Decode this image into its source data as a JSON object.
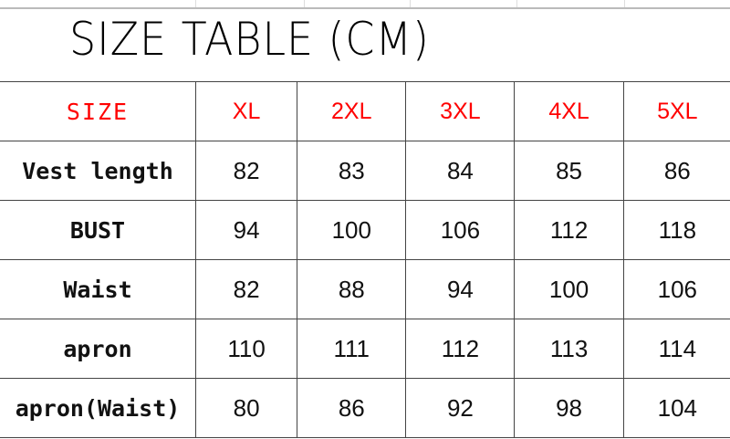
{
  "title": "SIZE TABLE (CM)",
  "header": {
    "label": "SIZE",
    "sizes": [
      "XL",
      "2XL",
      "3XL",
      "4XL",
      "5XL"
    ]
  },
  "rows": [
    {
      "label": "Vest length",
      "values": [
        "82",
        "83",
        "84",
        "85",
        "86"
      ]
    },
    {
      "label": "BUST",
      "values": [
        "94",
        "100",
        "106",
        "112",
        "118"
      ]
    },
    {
      "label": "Waist",
      "values": [
        "82",
        "88",
        "94",
        "100",
        "106"
      ]
    },
    {
      "label": "apron",
      "values": [
        "110",
        "111",
        "112",
        "113",
        "114"
      ]
    },
    {
      "label": "apron(Waist)",
      "values": [
        "80",
        "86",
        "92",
        "98",
        "104"
      ]
    }
  ],
  "colors": {
    "header_text": "#ff0000",
    "body_text": "#000000"
  }
}
